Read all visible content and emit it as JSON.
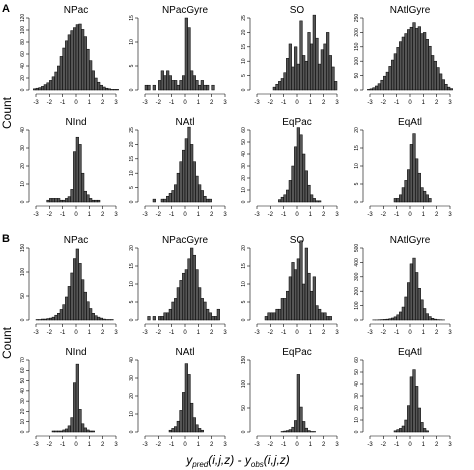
{
  "figure": {
    "y_label": "Count",
    "x_label_parts": [
      "y",
      "pred",
      "(i,j,z) - y",
      "obs",
      "(i,j,z)"
    ],
    "x_ticks": [
      "-3",
      "-2",
      "-1",
      "0",
      "1",
      "2",
      "3"
    ]
  },
  "chart_data": [
    {
      "type": "bar",
      "panel": "A",
      "title": "NPac",
      "bin_edges_start": -3.2,
      "bin_width": 0.2,
      "values": [
        2,
        3,
        4,
        6,
        9,
        12,
        16,
        22,
        30,
        40,
        56,
        70,
        82,
        92,
        99,
        104,
        109,
        110,
        101,
        89,
        68,
        49,
        32,
        20,
        13,
        8,
        5,
        3,
        2,
        1,
        1,
        1
      ],
      "ylim": [
        0,
        120
      ],
      "y_ticks": [
        0,
        20,
        40,
        60,
        80,
        100,
        120
      ],
      "xlim": [
        -3.3,
        3.3
      ]
    },
    {
      "type": "bar",
      "panel": "A",
      "title": "NPacGyre",
      "bin_edges_start": -3.2,
      "bin_width": 0.2,
      "values": [
        0,
        1,
        1,
        0,
        1,
        0,
        2,
        4,
        3,
        4,
        3,
        2,
        2,
        1,
        2,
        3,
        15,
        13,
        4,
        3,
        2,
        1,
        2,
        1,
        1,
        0,
        1,
        0,
        0,
        0,
        0,
        0
      ],
      "ylim": [
        0,
        15
      ],
      "y_ticks": [
        0,
        5,
        10,
        15
      ],
      "xlim": [
        -3.3,
        3.3
      ]
    },
    {
      "type": "bar",
      "panel": "A",
      "title": "SO",
      "bin_edges_start": -3.2,
      "bin_width": 0.2,
      "values": [
        0,
        0,
        0,
        0,
        0,
        0,
        0,
        1,
        2,
        3,
        4,
        6,
        11,
        16,
        8,
        15,
        9,
        24,
        12,
        10,
        20,
        16,
        26,
        18,
        9,
        14,
        16,
        20,
        12,
        8,
        3,
        0
      ],
      "ylim": [
        0,
        25
      ],
      "y_ticks": [
        0,
        5,
        10,
        15,
        20,
        25
      ],
      "xlim": [
        -3.3,
        3.3
      ]
    },
    {
      "type": "bar",
      "panel": "A",
      "title": "NAtlGyre",
      "bin_edges_start": -3.2,
      "bin_width": 0.2,
      "values": [
        2,
        4,
        8,
        14,
        22,
        34,
        48,
        62,
        82,
        104,
        126,
        148,
        168,
        184,
        196,
        210,
        218,
        234,
        214,
        220,
        196,
        200,
        176,
        152,
        120,
        100,
        78,
        56,
        36,
        20,
        10,
        5
      ],
      "ylim": [
        0,
        250
      ],
      "y_ticks": [
        0,
        50,
        100,
        150,
        200,
        250
      ],
      "xlim": [
        -3.3,
        3.3
      ]
    },
    {
      "type": "bar",
      "panel": "A",
      "title": "NInd",
      "bin_edges_start": -3.2,
      "bin_width": 0.2,
      "values": [
        0,
        0,
        0,
        0,
        0,
        1,
        2,
        2,
        2,
        2,
        1,
        1,
        2,
        3,
        7,
        28,
        36,
        32,
        16,
        6,
        4,
        2,
        1,
        1,
        1,
        0,
        0,
        0,
        0,
        0,
        0,
        0
      ],
      "ylim": [
        0,
        40
      ],
      "y_ticks": [
        0,
        10,
        20,
        30,
        40
      ],
      "xlim": [
        -3.3,
        3.3
      ]
    },
    {
      "type": "bar",
      "panel": "A",
      "title": "NAtl",
      "bin_edges_start": -3.2,
      "bin_width": 0.2,
      "values": [
        0,
        0,
        0,
        0,
        1,
        0,
        0,
        1,
        1,
        2,
        3,
        4,
        6,
        10,
        14,
        18,
        22,
        26,
        20,
        14,
        9,
        6,
        4,
        2,
        1,
        1,
        0,
        0,
        0,
        0,
        0,
        0
      ],
      "ylim": [
        0,
        25
      ],
      "y_ticks": [
        0,
        5,
        10,
        15,
        20,
        25
      ],
      "xlim": [
        -3.3,
        3.3
      ]
    },
    {
      "type": "bar",
      "panel": "A",
      "title": "EqPac",
      "bin_edges_start": -3.2,
      "bin_width": 0.2,
      "values": [
        0,
        0,
        0,
        0,
        0,
        0,
        0,
        0,
        0,
        2,
        4,
        6,
        10,
        18,
        30,
        46,
        62,
        56,
        40,
        26,
        14,
        6,
        3,
        1,
        1,
        0,
        0,
        0,
        0,
        0,
        0,
        0
      ],
      "ylim": [
        0,
        60
      ],
      "y_ticks": [
        0,
        10,
        20,
        30,
        40,
        50,
        60
      ],
      "xlim": [
        -3.3,
        3.3
      ]
    },
    {
      "type": "bar",
      "panel": "A",
      "title": "EqAtl",
      "bin_edges_start": -3.2,
      "bin_width": 0.2,
      "values": [
        0,
        0,
        0,
        0,
        0,
        0,
        0,
        0,
        0,
        0,
        1,
        1,
        2,
        4,
        6,
        9,
        16,
        19,
        12,
        8,
        4,
        3,
        2,
        1,
        0,
        0,
        0,
        0,
        0,
        0,
        0,
        0
      ],
      "ylim": [
        0,
        20
      ],
      "y_ticks": [
        0,
        5,
        10,
        15,
        20
      ],
      "xlim": [
        -3.3,
        3.3
      ]
    },
    {
      "type": "bar",
      "panel": "B",
      "title": "NPac",
      "bin_edges_start": -3.2,
      "bin_width": 0.2,
      "values": [
        0,
        1,
        1,
        2,
        2,
        3,
        4,
        6,
        10,
        14,
        22,
        32,
        48,
        70,
        98,
        128,
        148,
        118,
        84,
        58,
        38,
        24,
        14,
        9,
        6,
        4,
        2,
        1,
        1,
        1,
        0,
        0
      ],
      "ylim": [
        0,
        150
      ],
      "y_ticks": [
        0,
        50,
        100,
        150
      ],
      "xlim": [
        -3.3,
        3.3
      ]
    },
    {
      "type": "bar",
      "panel": "B",
      "title": "NPacGyre",
      "bin_edges_start": -3.2,
      "bin_width": 0.2,
      "values": [
        0,
        0,
        1,
        0,
        1,
        0,
        1,
        1,
        2,
        2,
        3,
        5,
        6,
        9,
        11,
        13,
        14,
        17,
        20,
        18,
        14,
        9,
        6,
        5,
        3,
        2,
        1,
        1,
        3,
        0,
        0,
        0
      ],
      "ylim": [
        0,
        20
      ],
      "y_ticks": [
        0,
        5,
        10,
        15,
        20
      ],
      "xlim": [
        -3.3,
        3.3
      ]
    },
    {
      "type": "bar",
      "panel": "B",
      "title": "SO",
      "bin_edges_start": -3.2,
      "bin_width": 0.2,
      "values": [
        0,
        0,
        0,
        0,
        1,
        2,
        2,
        2,
        3,
        3,
        6,
        6,
        8,
        12,
        16,
        14,
        17,
        22,
        10,
        20,
        13,
        8,
        12,
        4,
        3,
        2,
        2,
        1,
        1,
        0,
        0,
        0
      ],
      "ylim": [
        0,
        20
      ],
      "y_ticks": [
        0,
        5,
        10,
        15,
        20
      ],
      "xlim": [
        -3.3,
        3.3
      ]
    },
    {
      "type": "bar",
      "panel": "B",
      "title": "NAtlGyre",
      "bin_edges_start": -3.2,
      "bin_width": 0.2,
      "values": [
        0,
        0,
        1,
        1,
        2,
        3,
        4,
        6,
        9,
        14,
        22,
        36,
        56,
        90,
        160,
        260,
        390,
        430,
        330,
        220,
        140,
        80,
        44,
        24,
        12,
        6,
        3,
        2,
        1,
        0,
        0,
        0
      ],
      "ylim": [
        0,
        500
      ],
      "y_ticks": [
        0,
        100,
        200,
        300,
        400,
        500
      ],
      "xlim": [
        -3.3,
        3.3
      ]
    },
    {
      "type": "bar",
      "panel": "B",
      "title": "NInd",
      "bin_edges_start": -3.2,
      "bin_width": 0.2,
      "values": [
        0,
        0,
        0,
        0,
        0,
        0,
        0,
        1,
        1,
        1,
        1,
        2,
        3,
        6,
        14,
        48,
        66,
        22,
        8,
        4,
        2,
        1,
        1,
        0,
        0,
        0,
        0,
        0,
        0,
        0,
        0,
        0
      ],
      "ylim": [
        0,
        70
      ],
      "y_ticks": [
        0,
        10,
        20,
        30,
        40,
        50,
        60,
        70
      ],
      "xlim": [
        -3.3,
        3.3
      ]
    },
    {
      "type": "bar",
      "panel": "B",
      "title": "NAtl",
      "bin_edges_start": -3.2,
      "bin_width": 0.2,
      "values": [
        0,
        0,
        0,
        0,
        0,
        0,
        0,
        0,
        0,
        0,
        1,
        2,
        3,
        6,
        12,
        22,
        38,
        32,
        16,
        8,
        4,
        2,
        1,
        0,
        0,
        0,
        0,
        0,
        0,
        0,
        0,
        0
      ],
      "ylim": [
        0,
        40
      ],
      "y_ticks": [
        0,
        10,
        20,
        30,
        40
      ],
      "xlim": [
        -3.3,
        3.3
      ]
    },
    {
      "type": "bar",
      "panel": "B",
      "title": "EqPac",
      "bin_edges_start": -3.2,
      "bin_width": 0.2,
      "values": [
        0,
        0,
        0,
        0,
        0,
        0,
        0,
        0,
        0,
        0,
        1,
        2,
        3,
        5,
        10,
        24,
        120,
        52,
        22,
        8,
        3,
        1,
        1,
        0,
        0,
        0,
        0,
        0,
        0,
        0,
        0,
        0
      ],
      "ylim": [
        0,
        150
      ],
      "y_ticks": [
        0,
        50,
        100,
        150
      ],
      "xlim": [
        -3.3,
        3.3
      ]
    },
    {
      "type": "bar",
      "panel": "B",
      "title": "EqAtl",
      "bin_edges_start": -3.2,
      "bin_width": 0.2,
      "values": [
        0,
        0,
        0,
        0,
        0,
        0,
        0,
        0,
        0,
        0,
        1,
        2,
        3,
        5,
        10,
        22,
        46,
        52,
        38,
        20,
        8,
        3,
        1,
        0,
        0,
        0,
        0,
        0,
        0,
        0,
        0,
        0
      ],
      "ylim": [
        0,
        60
      ],
      "y_ticks": [
        0,
        10,
        20,
        30,
        40,
        50,
        60
      ],
      "xlim": [
        -3.3,
        3.3
      ]
    }
  ],
  "section_labels": [
    "A",
    "B"
  ]
}
